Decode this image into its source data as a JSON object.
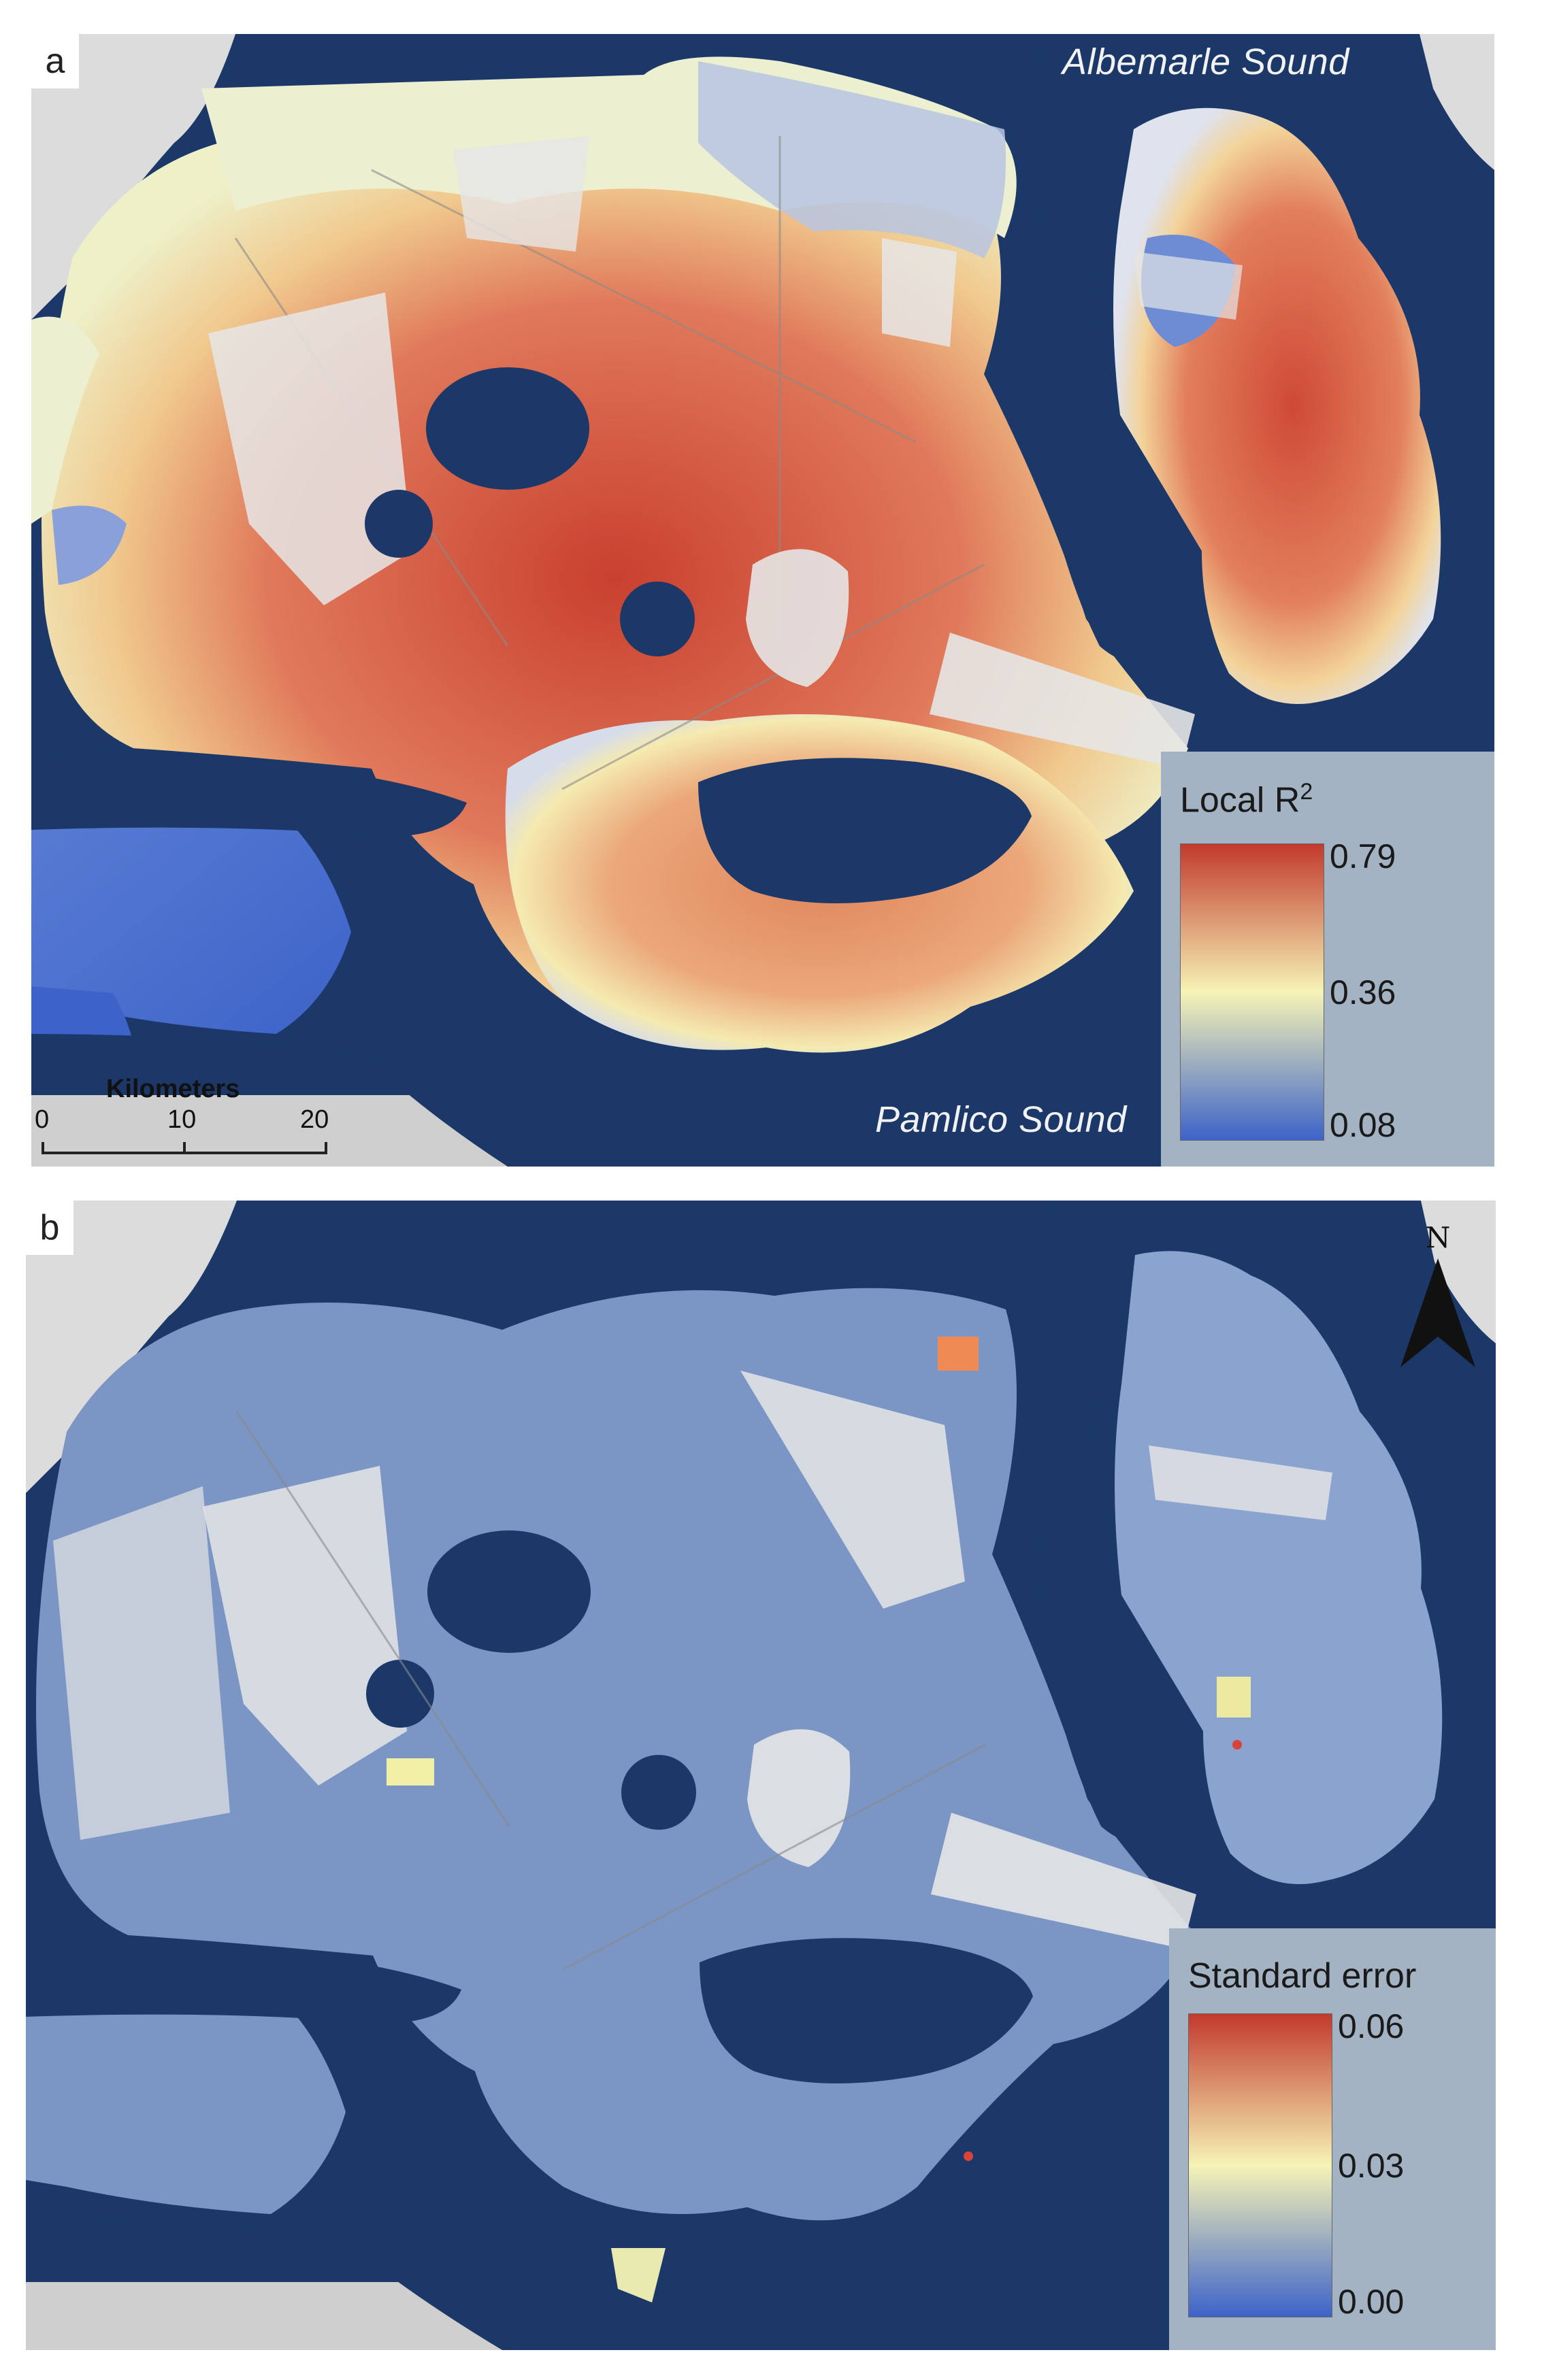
{
  "panels": {
    "a": {
      "letter": "a",
      "labels": {
        "albemarle": "Albemarle Sound",
        "pamlico": "Pamlico Sound"
      },
      "legend": {
        "title": "Local R",
        "title_superscript": "2",
        "ticks": [
          "0.79",
          "0.36",
          "0.08"
        ],
        "colors": [
          "#c23a2c",
          "#f6f3b6",
          "#3d63c9"
        ]
      },
      "scalebar": {
        "title": "Kilometers",
        "ticks": [
          "0",
          "10",
          "20"
        ]
      }
    },
    "b": {
      "letter": "b",
      "legend": {
        "title": "Standard error",
        "ticks": [
          "0.06",
          "0.03",
          "0.00"
        ],
        "colors": [
          "#c23a2c",
          "#f6f3b6",
          "#3d63c9"
        ]
      },
      "north_arrow": {
        "letter": "N",
        "icon": "north-arrow-icon"
      }
    }
  },
  "colors": {
    "water": "#1b3869",
    "land": "#e2e2e2",
    "high": "#c9402f",
    "mid": "#f4efb0",
    "low": "#4a6fd0",
    "se_base": "#7b95c4"
  }
}
